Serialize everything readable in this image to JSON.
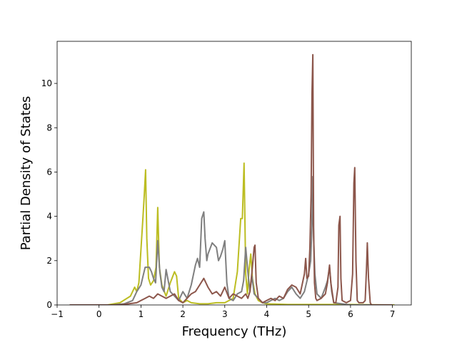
{
  "chart_data": {
    "type": "line",
    "title": "",
    "xlabel": "Frequency (THz)",
    "ylabel": "Partial Density of States",
    "xlim": [
      -1.0,
      7.45
    ],
    "ylim": [
      0,
      11.9
    ],
    "xticks": [
      -1,
      0,
      1,
      2,
      3,
      4,
      5,
      6,
      7
    ],
    "yticks": [
      0,
      2,
      4,
      6,
      8,
      10
    ],
    "grid": false,
    "legend": "none",
    "series": [
      {
        "color": "#bcbd22",
        "x": [
          -0.7,
          0.2,
          0.5,
          0.75,
          0.85,
          0.9,
          0.95,
          1.0,
          1.05,
          1.08,
          1.11,
          1.14,
          1.18,
          1.23,
          1.3,
          1.36,
          1.4,
          1.44,
          1.5,
          1.6,
          1.7,
          1.8,
          1.85,
          1.9,
          2.0,
          2.1,
          2.2,
          2.4,
          2.6,
          2.8,
          3.0,
          3.2,
          3.3,
          3.38,
          3.42,
          3.46,
          3.5,
          3.54,
          3.58,
          3.62,
          3.66,
          3.72,
          3.8,
          3.9,
          4.0,
          4.5,
          5.0,
          5.5,
          6.0,
          6.5,
          7.05
        ],
        "y": [
          0,
          0,
          0.1,
          0.4,
          0.8,
          0.6,
          1.0,
          2.5,
          4.0,
          5.0,
          6.1,
          3.0,
          1.2,
          0.9,
          1.1,
          1.7,
          4.4,
          1.7,
          0.9,
          0.4,
          1.0,
          1.5,
          1.3,
          0.3,
          0.1,
          0.2,
          0.1,
          0.05,
          0.05,
          0.1,
          0.1,
          0.3,
          1.5,
          3.9,
          3.9,
          6.4,
          1.4,
          0.5,
          1.6,
          2.3,
          1.2,
          0.5,
          0.2,
          0.1,
          0.05,
          0.02,
          0.02,
          0.02,
          0.02,
          0.01,
          0
        ]
      },
      {
        "color": "#7f7f7f",
        "x": [
          -0.7,
          0.3,
          0.6,
          0.8,
          0.9,
          1.0,
          1.05,
          1.1,
          1.2,
          1.25,
          1.3,
          1.35,
          1.4,
          1.45,
          1.5,
          1.55,
          1.6,
          1.7,
          1.8,
          1.9,
          2.0,
          2.1,
          2.2,
          2.3,
          2.35,
          2.4,
          2.45,
          2.5,
          2.53,
          2.57,
          2.6,
          2.7,
          2.8,
          2.85,
          2.9,
          2.95,
          3.0,
          3.05,
          3.1,
          3.2,
          3.3,
          3.4,
          3.45,
          3.5,
          3.55,
          3.6,
          3.65,
          3.7,
          3.75,
          3.8,
          3.9,
          4.0,
          4.1,
          4.2,
          4.3,
          4.4,
          4.5,
          4.6,
          4.7,
          4.8,
          4.9,
          5.0,
          5.05,
          5.08,
          5.1,
          5.12,
          5.15,
          5.2,
          5.3,
          5.4,
          5.45,
          5.5,
          5.55,
          5.6,
          6.0,
          7.0
        ],
        "y": [
          0,
          0,
          0.05,
          0.2,
          0.6,
          0.9,
          1.3,
          1.7,
          1.7,
          1.5,
          1.2,
          1.0,
          2.9,
          1.5,
          0.8,
          0.6,
          1.6,
          0.6,
          0.4,
          0.2,
          0.6,
          0.3,
          0.9,
          1.8,
          2.1,
          1.7,
          3.9,
          4.2,
          3.0,
          2.0,
          2.3,
          2.8,
          2.6,
          2.0,
          2.2,
          2.5,
          2.9,
          1.0,
          0.3,
          0.2,
          0.5,
          0.6,
          1.1,
          2.6,
          1.5,
          0.6,
          1.3,
          0.5,
          0.4,
          0.3,
          0.1,
          0.1,
          0.2,
          0.3,
          0.2,
          0.3,
          0.6,
          0.8,
          0.5,
          0.3,
          0.6,
          1.4,
          2.0,
          3.6,
          5.8,
          3.0,
          1.4,
          0.5,
          0.3,
          0.8,
          1.1,
          1.7,
          0.6,
          0.1,
          0,
          0
        ]
      },
      {
        "color": "#8c564b",
        "x": [
          -0.7,
          0.5,
          0.9,
          1.0,
          1.1,
          1.2,
          1.3,
          1.4,
          1.5,
          1.6,
          1.7,
          1.8,
          1.9,
          2.0,
          2.1,
          2.2,
          2.3,
          2.4,
          2.5,
          2.6,
          2.7,
          2.8,
          2.9,
          3.0,
          3.1,
          3.2,
          3.3,
          3.4,
          3.5,
          3.55,
          3.6,
          3.65,
          3.7,
          3.72,
          3.75,
          3.8,
          3.9,
          4.0,
          4.1,
          4.2,
          4.3,
          4.4,
          4.5,
          4.6,
          4.7,
          4.8,
          4.9,
          4.93,
          4.96,
          5.0,
          5.03,
          5.06,
          5.08,
          5.1,
          5.12,
          5.14,
          5.17,
          5.2,
          5.3,
          5.4,
          5.45,
          5.5,
          5.53,
          5.6,
          5.65,
          5.7,
          5.72,
          5.75,
          5.77,
          5.8,
          5.9,
          6.0,
          6.05,
          6.08,
          6.1,
          6.13,
          6.16,
          6.2,
          6.3,
          6.35,
          6.38,
          6.4,
          6.43,
          6.47,
          6.5,
          6.6,
          7.0
        ],
        "y": [
          0,
          0,
          0.1,
          0.2,
          0.3,
          0.4,
          0.3,
          0.5,
          0.4,
          0.3,
          0.4,
          0.5,
          0.2,
          0.1,
          0.3,
          0.5,
          0.6,
          0.9,
          1.2,
          0.8,
          0.5,
          0.6,
          0.4,
          0.8,
          0.3,
          0.5,
          0.4,
          0.3,
          0.5,
          0.3,
          0.6,
          1.5,
          2.6,
          2.7,
          1.0,
          0.3,
          0.1,
          0.2,
          0.3,
          0.2,
          0.4,
          0.3,
          0.7,
          0.9,
          0.8,
          0.5,
          1.4,
          2.1,
          1.2,
          1.3,
          2.6,
          5.0,
          9.5,
          11.3,
          3.5,
          1.0,
          0.3,
          0.2,
          0.3,
          0.5,
          1.0,
          1.8,
          1.0,
          0.1,
          0.1,
          0.8,
          3.6,
          4.0,
          1.2,
          0.2,
          0.1,
          0.2,
          1.4,
          5.5,
          6.2,
          2.0,
          0.2,
          0.1,
          0.1,
          0.2,
          1.6,
          2.8,
          1.2,
          0.1,
          0,
          0,
          0
        ]
      }
    ]
  }
}
